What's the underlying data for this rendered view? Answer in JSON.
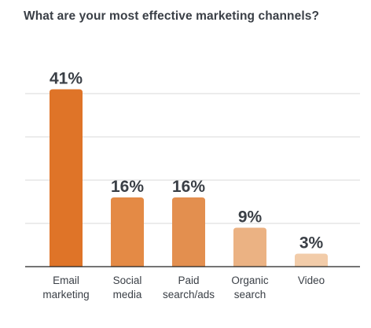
{
  "chart_data": {
    "type": "bar",
    "title": "What are your most effective marketing channels?",
    "categories": [
      [
        "Email",
        "marketing"
      ],
      [
        "Social",
        "media"
      ],
      [
        "Paid",
        "search/ads"
      ],
      [
        "Organic",
        "search"
      ],
      [
        "Video"
      ]
    ],
    "values": [
      41,
      16,
      16,
      9,
      3
    ],
    "value_labels": [
      "41%",
      "16%",
      "16%",
      "9%",
      "3%"
    ],
    "ylim": [
      0,
      50
    ],
    "grid": true,
    "bar_colors": [
      "#df7428",
      "#e48a45",
      "#e38f4f",
      "#ebb283",
      "#f2cca9"
    ],
    "value_label_color": "#3a3f46",
    "category_label_color": "#3a3f46",
    "grid_color": "#d8d8d8",
    "axis_color": "#222222"
  }
}
